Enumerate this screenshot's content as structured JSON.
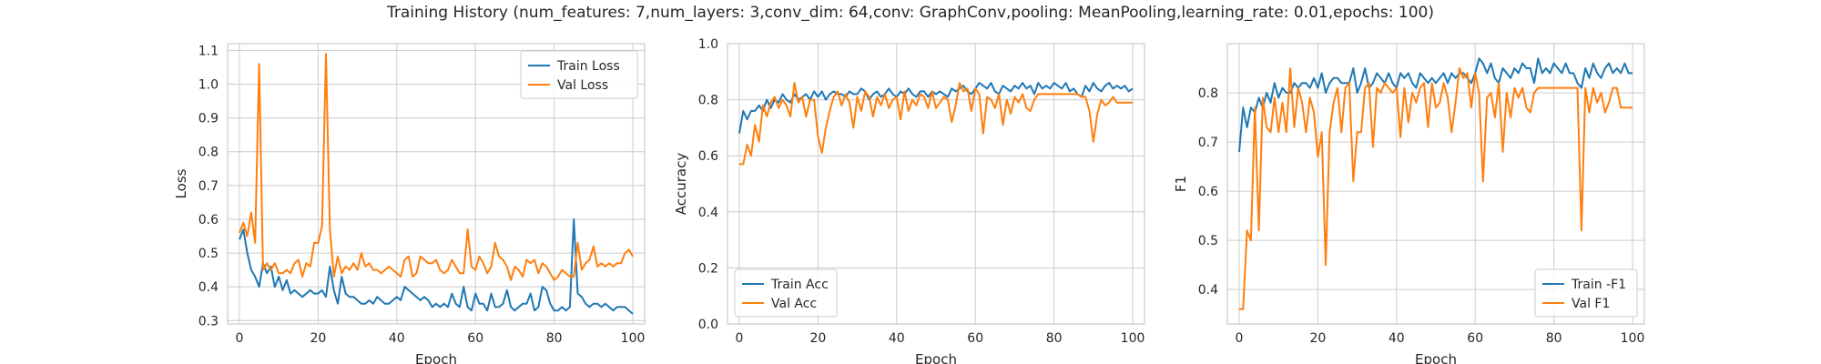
{
  "figure": {
    "suptitle": "Training History (num_features: 7,num_layers: 3,conv_dim: 64,conv: GraphConv,pooling: MeanPooling,learning_rate: 0.01,epochs: 100)"
  },
  "colors": {
    "series1": "#1f77b4",
    "series2": "#ff7f0e",
    "grid": "#cccccc",
    "frame": "#cccccc"
  },
  "chart_data": [
    {
      "type": "line",
      "xlabel": "Epoch",
      "ylabel": "Loss",
      "xlim": [
        -3,
        103
      ],
      "ylim": [
        0.29,
        1.12
      ],
      "xticks": [
        0,
        20,
        40,
        60,
        80,
        100
      ],
      "yticks": [
        0.3,
        0.4,
        0.5,
        0.6,
        0.7,
        0.8,
        0.9,
        1.0,
        1.1
      ],
      "yticklabels": [
        "0.3",
        "0.4",
        "0.5",
        "0.6",
        "0.7",
        "0.8",
        "0.9",
        "1.0",
        "1.1"
      ],
      "grid": true,
      "legend_position": "top-right",
      "series": [
        {
          "name": "Train Loss",
          "color": "#1f77b4",
          "values": [
            0.54,
            0.57,
            0.5,
            0.45,
            0.43,
            0.4,
            0.47,
            0.44,
            0.46,
            0.4,
            0.43,
            0.39,
            0.42,
            0.38,
            0.39,
            0.38,
            0.37,
            0.38,
            0.39,
            0.38,
            0.38,
            0.39,
            0.37,
            0.46,
            0.39,
            0.35,
            0.43,
            0.38,
            0.37,
            0.37,
            0.36,
            0.35,
            0.35,
            0.36,
            0.35,
            0.37,
            0.36,
            0.35,
            0.35,
            0.36,
            0.37,
            0.36,
            0.4,
            0.39,
            0.38,
            0.37,
            0.36,
            0.37,
            0.36,
            0.34,
            0.35,
            0.34,
            0.35,
            0.34,
            0.38,
            0.35,
            0.34,
            0.4,
            0.34,
            0.33,
            0.38,
            0.35,
            0.35,
            0.33,
            0.38,
            0.34,
            0.34,
            0.35,
            0.39,
            0.34,
            0.33,
            0.34,
            0.35,
            0.35,
            0.38,
            0.33,
            0.34,
            0.4,
            0.39,
            0.35,
            0.33,
            0.33,
            0.34,
            0.33,
            0.34,
            0.6,
            0.38,
            0.37,
            0.35,
            0.34,
            0.35,
            0.35,
            0.34,
            0.35,
            0.34,
            0.33,
            0.34,
            0.34,
            0.34,
            0.33,
            0.32
          ]
        },
        {
          "name": "Val Loss",
          "color": "#ff7f0e",
          "values": [
            0.56,
            0.59,
            0.55,
            0.62,
            0.53,
            1.06,
            0.45,
            0.47,
            0.45,
            0.47,
            0.44,
            0.44,
            0.45,
            0.44,
            0.47,
            0.48,
            0.43,
            0.47,
            0.46,
            0.53,
            0.53,
            0.58,
            1.09,
            0.57,
            0.43,
            0.49,
            0.44,
            0.46,
            0.45,
            0.47,
            0.45,
            0.5,
            0.46,
            0.47,
            0.45,
            0.45,
            0.44,
            0.45,
            0.46,
            0.45,
            0.44,
            0.43,
            0.48,
            0.49,
            0.43,
            0.44,
            0.49,
            0.48,
            0.47,
            0.47,
            0.48,
            0.45,
            0.44,
            0.45,
            0.48,
            0.46,
            0.44,
            0.44,
            0.57,
            0.46,
            0.45,
            0.49,
            0.47,
            0.44,
            0.46,
            0.53,
            0.49,
            0.48,
            0.46,
            0.42,
            0.46,
            0.45,
            0.43,
            0.48,
            0.47,
            0.48,
            0.44,
            0.47,
            0.46,
            0.44,
            0.42,
            0.43,
            0.45,
            0.44,
            0.43,
            0.43,
            0.53,
            0.45,
            0.47,
            0.48,
            0.52,
            0.46,
            0.47,
            0.46,
            0.47,
            0.46,
            0.47,
            0.47,
            0.5,
            0.51,
            0.49
          ]
        }
      ]
    },
    {
      "type": "line",
      "xlabel": "Epoch",
      "ylabel": "Accuracy",
      "xlim": [
        -3,
        103
      ],
      "ylim": [
        0.0,
        1.0
      ],
      "xticks": [
        0,
        20,
        40,
        60,
        80,
        100
      ],
      "yticks": [
        0.0,
        0.2,
        0.4,
        0.6,
        0.8,
        1.0
      ],
      "yticklabels": [
        "0.0",
        "0.2",
        "0.4",
        "0.6",
        "0.8",
        "1.0"
      ],
      "grid": true,
      "legend_position": "bottom-left",
      "series": [
        {
          "name": "Train Acc",
          "color": "#1f77b4",
          "values": [
            0.68,
            0.76,
            0.73,
            0.76,
            0.76,
            0.78,
            0.76,
            0.8,
            0.77,
            0.8,
            0.79,
            0.82,
            0.8,
            0.79,
            0.82,
            0.8,
            0.81,
            0.82,
            0.8,
            0.83,
            0.81,
            0.83,
            0.8,
            0.82,
            0.83,
            0.82,
            0.82,
            0.81,
            0.83,
            0.82,
            0.82,
            0.84,
            0.83,
            0.8,
            0.82,
            0.83,
            0.81,
            0.82,
            0.84,
            0.82,
            0.81,
            0.83,
            0.82,
            0.84,
            0.82,
            0.81,
            0.83,
            0.83,
            0.81,
            0.83,
            0.82,
            0.83,
            0.82,
            0.81,
            0.84,
            0.83,
            0.84,
            0.85,
            0.83,
            0.82,
            0.84,
            0.86,
            0.85,
            0.84,
            0.86,
            0.83,
            0.82,
            0.85,
            0.84,
            0.83,
            0.85,
            0.84,
            0.86,
            0.84,
            0.85,
            0.82,
            0.86,
            0.84,
            0.85,
            0.84,
            0.86,
            0.85,
            0.84,
            0.86,
            0.83,
            0.84,
            0.82,
            0.81,
            0.85,
            0.83,
            0.86,
            0.84,
            0.83,
            0.85,
            0.86,
            0.84,
            0.85,
            0.84,
            0.85,
            0.83,
            0.84
          ]
        },
        {
          "name": "Val Acc",
          "color": "#ff7f0e",
          "values": [
            0.57,
            0.57,
            0.64,
            0.6,
            0.71,
            0.65,
            0.78,
            0.74,
            0.79,
            0.81,
            0.77,
            0.8,
            0.78,
            0.74,
            0.86,
            0.79,
            0.81,
            0.74,
            0.8,
            0.8,
            0.67,
            0.61,
            0.7,
            0.76,
            0.81,
            0.83,
            0.78,
            0.82,
            0.79,
            0.7,
            0.81,
            0.76,
            0.83,
            0.81,
            0.74,
            0.81,
            0.78,
            0.82,
            0.77,
            0.8,
            0.81,
            0.73,
            0.83,
            0.76,
            0.8,
            0.78,
            0.82,
            0.81,
            0.77,
            0.83,
            0.77,
            0.79,
            0.81,
            0.8,
            0.72,
            0.78,
            0.86,
            0.83,
            0.84,
            0.76,
            0.84,
            0.82,
            0.68,
            0.81,
            0.8,
            0.77,
            0.82,
            0.71,
            0.8,
            0.75,
            0.81,
            0.79,
            0.82,
            0.77,
            0.76,
            0.8,
            0.82,
            0.82,
            0.82,
            0.82,
            0.82,
            0.82,
            0.82,
            0.82,
            0.82,
            0.82,
            0.82,
            0.81,
            0.81,
            0.76,
            0.65,
            0.75,
            0.8,
            0.78,
            0.79,
            0.81,
            0.79,
            0.79,
            0.79,
            0.79,
            0.79
          ]
        }
      ]
    },
    {
      "type": "line",
      "xlabel": "Epoch",
      "ylabel": "F1",
      "xlim": [
        -3,
        103
      ],
      "ylim": [
        0.33,
        0.9
      ],
      "xticks": [
        0,
        20,
        40,
        60,
        80,
        100
      ],
      "yticks": [
        0.4,
        0.5,
        0.6,
        0.7,
        0.8
      ],
      "yticklabels": [
        "0.4",
        "0.5",
        "0.6",
        "0.7",
        "0.8"
      ],
      "grid": true,
      "legend_position": "bottom-right",
      "series": [
        {
          "name": "Train -F1",
          "color": "#1f77b4",
          "values": [
            0.68,
            0.77,
            0.73,
            0.77,
            0.76,
            0.79,
            0.77,
            0.8,
            0.78,
            0.82,
            0.79,
            0.81,
            0.8,
            0.8,
            0.82,
            0.81,
            0.82,
            0.82,
            0.81,
            0.83,
            0.81,
            0.84,
            0.8,
            0.82,
            0.83,
            0.83,
            0.82,
            0.82,
            0.82,
            0.85,
            0.8,
            0.82,
            0.85,
            0.81,
            0.82,
            0.84,
            0.83,
            0.82,
            0.84,
            0.82,
            0.81,
            0.84,
            0.83,
            0.84,
            0.82,
            0.81,
            0.84,
            0.83,
            0.82,
            0.83,
            0.82,
            0.83,
            0.84,
            0.82,
            0.84,
            0.83,
            0.84,
            0.84,
            0.83,
            0.82,
            0.84,
            0.87,
            0.86,
            0.84,
            0.86,
            0.83,
            0.82,
            0.85,
            0.84,
            0.83,
            0.85,
            0.84,
            0.86,
            0.85,
            0.85,
            0.82,
            0.87,
            0.84,
            0.85,
            0.84,
            0.86,
            0.85,
            0.84,
            0.86,
            0.84,
            0.84,
            0.82,
            0.81,
            0.85,
            0.83,
            0.86,
            0.84,
            0.83,
            0.85,
            0.86,
            0.84,
            0.85,
            0.84,
            0.86,
            0.84,
            0.84
          ]
        },
        {
          "name": "Val F1",
          "color": "#ff7f0e",
          "values": [
            0.36,
            0.36,
            0.52,
            0.5,
            0.77,
            0.52,
            0.79,
            0.73,
            0.72,
            0.79,
            0.72,
            0.78,
            0.72,
            0.85,
            0.73,
            0.81,
            0.78,
            0.72,
            0.79,
            0.76,
            0.67,
            0.72,
            0.45,
            0.72,
            0.78,
            0.81,
            0.72,
            0.81,
            0.82,
            0.62,
            0.72,
            0.72,
            0.81,
            0.82,
            0.69,
            0.81,
            0.8,
            0.82,
            0.81,
            0.8,
            0.81,
            0.71,
            0.81,
            0.74,
            0.8,
            0.78,
            0.81,
            0.82,
            0.73,
            0.82,
            0.77,
            0.78,
            0.82,
            0.79,
            0.72,
            0.78,
            0.85,
            0.83,
            0.84,
            0.77,
            0.84,
            0.8,
            0.62,
            0.79,
            0.8,
            0.75,
            0.82,
            0.68,
            0.8,
            0.75,
            0.81,
            0.79,
            0.81,
            0.77,
            0.76,
            0.8,
            0.81,
            0.81,
            0.81,
            0.81,
            0.81,
            0.81,
            0.81,
            0.81,
            0.81,
            0.81,
            0.81,
            0.52,
            0.81,
            0.76,
            0.81,
            0.78,
            0.8,
            0.76,
            0.78,
            0.81,
            0.81,
            0.77,
            0.77,
            0.77,
            0.77
          ]
        }
      ]
    }
  ]
}
